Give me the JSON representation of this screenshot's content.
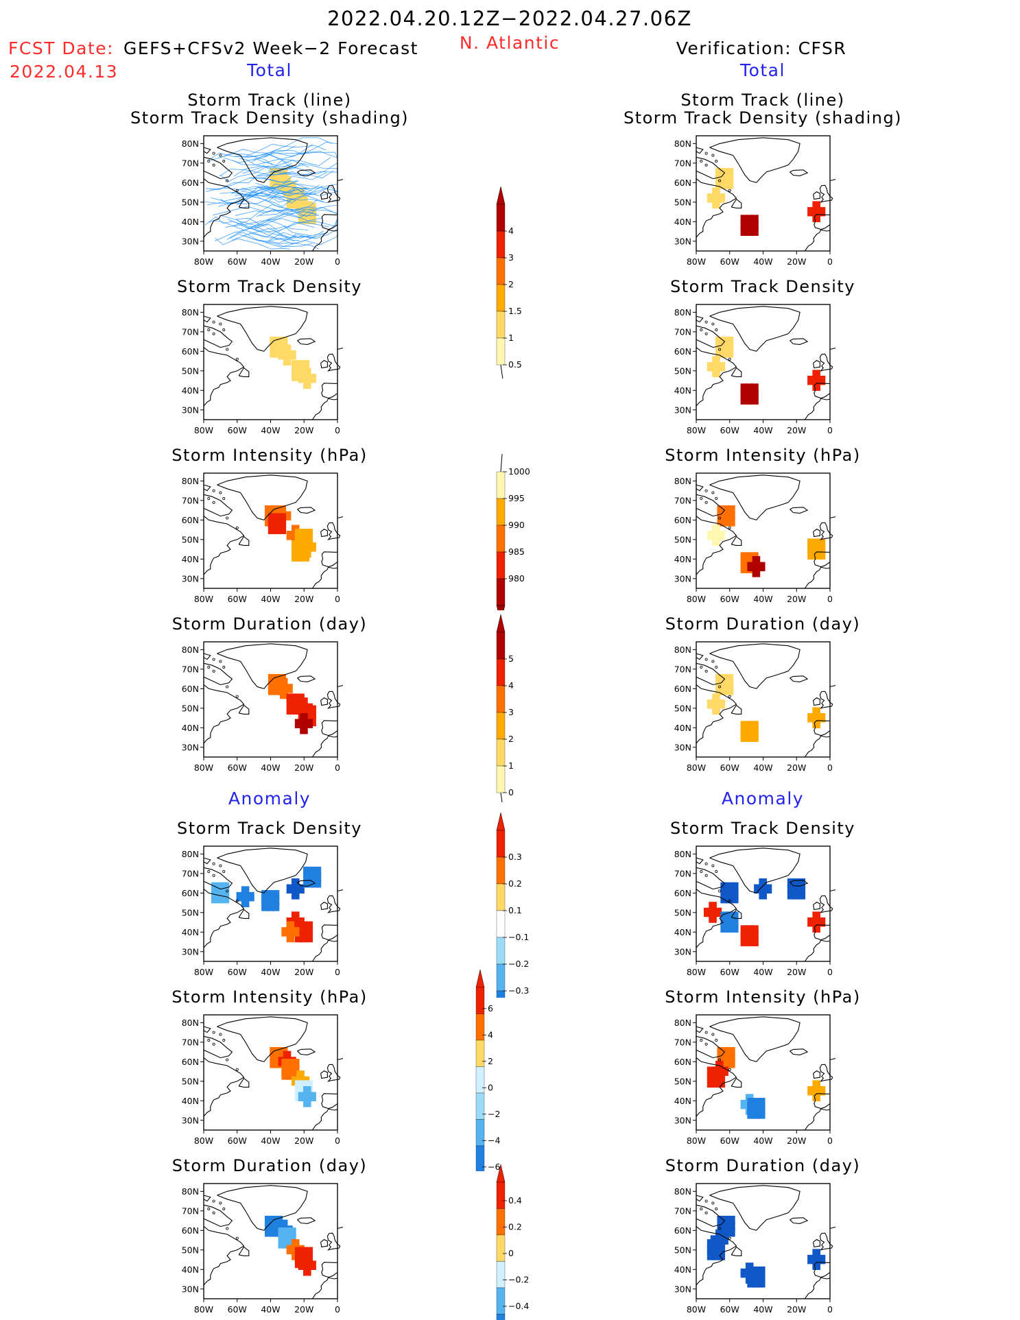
{
  "header": {
    "period": "2022.04.20.12Z−2022.04.27.06Z",
    "fcst_label": "FCST Date:",
    "fcst_model": "GEFS+CFSv2 Week−2 Forecast",
    "fcst_date": "2022.04.13",
    "region": "N. Atlantic",
    "verification": "Verification: CFSR",
    "section_total": "Total",
    "section_anomaly": "Anomaly"
  },
  "panel_titles": {
    "track_line": "Storm Track (line)",
    "track_shading": "Storm Track Density (shading)",
    "density": "Storm Track Density",
    "intensity": "Storm Intensity (hPa)",
    "duration": "Storm Duration (day)"
  },
  "axes": {
    "lon_ticks": [
      "80W",
      "60W",
      "40W",
      "20W",
      "0"
    ],
    "lat_ticks": [
      "80N",
      "70N",
      "60N",
      "50N",
      "40N",
      "30N"
    ]
  },
  "colors": {
    "pos": [
      "#fff7b0",
      "#ffd966",
      "#ffaa00",
      "#ff7000",
      "#ee2200",
      "#b00000"
    ],
    "neg": [
      "#d0f0ff",
      "#9ddcf8",
      "#55b4f0",
      "#2080e0",
      "#1058c8"
    ],
    "track": "#1e90ff",
    "title_red": "#ff2a2a",
    "title_blue": "#2222ee"
  },
  "chart_data": [
    {
      "type": "heatmap",
      "panel": "Forecast Total Storm Track / Density",
      "unit": "density",
      "cells": [
        [
          -35,
          62,
          1
        ],
        [
          -30,
          58,
          1
        ],
        [
          -25,
          52,
          1
        ],
        [
          -20,
          48,
          1
        ],
        [
          -18,
          44,
          1
        ]
      ]
    },
    {
      "type": "heatmap",
      "panel": "Forecast Total Storm Track Density",
      "unit": "density",
      "cells": [
        [
          -35,
          62,
          1
        ],
        [
          -30,
          58,
          1
        ],
        [
          -22,
          50,
          1
        ],
        [
          -18,
          46,
          1
        ]
      ]
    },
    {
      "type": "heatmap",
      "panel": "Forecast Total Storm Intensity",
      "unit": "hPa",
      "cells": [
        [
          -38,
          62,
          990
        ],
        [
          -33,
          62,
          990
        ],
        [
          -36,
          58,
          985
        ],
        [
          -25,
          52,
          990
        ],
        [
          -20,
          50,
          995
        ],
        [
          -18,
          46,
          995
        ],
        [
          -22,
          44,
          995
        ]
      ]
    },
    {
      "type": "heatmap",
      "panel": "Forecast Total Storm Duration",
      "unit": "day",
      "cells": [
        [
          -36,
          62,
          3
        ],
        [
          -32,
          60,
          3
        ],
        [
          -25,
          52,
          4
        ],
        [
          -20,
          50,
          4
        ],
        [
          -18,
          46,
          4
        ],
        [
          -20,
          42,
          5
        ]
      ]
    },
    {
      "type": "heatmap",
      "panel": "Verification Total Storm Track / Density",
      "unit": "density",
      "cells": [
        [
          -63,
          62,
          1
        ],
        [
          -68,
          52,
          1
        ],
        [
          -48,
          38,
          4
        ],
        [
          -8,
          45,
          3
        ]
      ]
    },
    {
      "type": "heatmap",
      "panel": "Verification Total Storm Track Density",
      "unit": "density",
      "cells": [
        [
          -63,
          62,
          1
        ],
        [
          -68,
          52,
          1
        ],
        [
          -48,
          38,
          4
        ],
        [
          -8,
          45,
          3
        ]
      ]
    },
    {
      "type": "heatmap",
      "panel": "Verification Total Storm Intensity",
      "unit": "hPa",
      "cells": [
        [
          -62,
          62,
          990
        ],
        [
          -68,
          52,
          1000
        ],
        [
          -48,
          38,
          990
        ],
        [
          -44,
          36,
          980
        ],
        [
          -8,
          45,
          995
        ]
      ]
    },
    {
      "type": "heatmap",
      "panel": "Verification Total Storm Duration",
      "unit": "day",
      "cells": [
        [
          -63,
          62,
          1
        ],
        [
          -68,
          52,
          1
        ],
        [
          -48,
          38,
          2
        ],
        [
          -8,
          45,
          2
        ]
      ]
    },
    {
      "type": "heatmap",
      "panel": "Forecast Anomaly Storm Track Density",
      "unit": "density",
      "cells": [
        [
          -70,
          60,
          -0.1
        ],
        [
          -55,
          58,
          -0.2
        ],
        [
          -40,
          56,
          -0.2
        ],
        [
          -25,
          62,
          -0.3
        ],
        [
          -15,
          68,
          -0.2
        ],
        [
          -25,
          45,
          0.3
        ],
        [
          -20,
          40,
          0.3
        ],
        [
          -28,
          40,
          0.2
        ]
      ]
    },
    {
      "type": "heatmap",
      "panel": "Forecast Anomaly Storm Intensity",
      "unit": "hPa",
      "cells": [
        [
          -35,
          62,
          4
        ],
        [
          -30,
          60,
          6
        ],
        [
          -28,
          56,
          4
        ],
        [
          -22,
          50,
          2
        ],
        [
          -20,
          45,
          0
        ],
        [
          -18,
          42,
          -2
        ]
      ]
    },
    {
      "type": "heatmap",
      "panel": "Forecast Anomaly Storm Duration",
      "unit": "day",
      "cells": [
        [
          -38,
          62,
          -0.2
        ],
        [
          -32,
          60,
          -0.3
        ],
        [
          -30,
          56,
          -0.1
        ],
        [
          -25,
          50,
          0.3
        ],
        [
          -20,
          46,
          0.4
        ],
        [
          -18,
          42,
          0.4
        ]
      ]
    },
    {
      "type": "heatmap",
      "panel": "Verification Anomaly Storm Track Density",
      "unit": "density",
      "cells": [
        [
          -60,
          60,
          -0.3
        ],
        [
          -40,
          62,
          -0.3
        ],
        [
          -20,
          62,
          -0.3
        ],
        [
          -70,
          50,
          0.3
        ],
        [
          -48,
          38,
          0.3
        ],
        [
          -8,
          45,
          0.3
        ],
        [
          -60,
          45,
          -0.2
        ]
      ]
    },
    {
      "type": "heatmap",
      "panel": "Verification Anomaly Storm Intensity",
      "unit": "hPa",
      "cells": [
        [
          -62,
          62,
          4
        ],
        [
          -66,
          55,
          6
        ],
        [
          -68,
          52,
          6
        ],
        [
          -48,
          38,
          -2
        ],
        [
          -44,
          36,
          -4
        ],
        [
          -8,
          45,
          2
        ]
      ]
    },
    {
      "type": "heatmap",
      "panel": "Verification Anomaly Storm Duration",
      "unit": "day",
      "cells": [
        [
          -62,
          62,
          -0.4
        ],
        [
          -66,
          55,
          -0.4
        ],
        [
          -68,
          50,
          -0.4
        ],
        [
          -48,
          38,
          -0.4
        ],
        [
          -44,
          36,
          -0.4
        ],
        [
          -8,
          45,
          -0.4
        ]
      ]
    }
  ],
  "colorbars": {
    "total_density": [
      "4",
      "3",
      "2",
      "1.5",
      "1",
      "0.5"
    ],
    "total_intensity": [
      "1000",
      "995",
      "990",
      "985",
      "980"
    ],
    "total_duration": [
      "5",
      "4",
      "3",
      "2",
      "1",
      "0"
    ],
    "anom_density": [
      "0.3",
      "0.2",
      "0.1",
      "−0.1",
      "−0.2",
      "−0.3"
    ],
    "anom_intensity": [
      "6",
      "4",
      "2",
      "0",
      "−2",
      "−4",
      "−6"
    ],
    "anom_duration": [
      "0.4",
      "0.2",
      "0",
      "−0.2",
      "−0.4"
    ]
  }
}
